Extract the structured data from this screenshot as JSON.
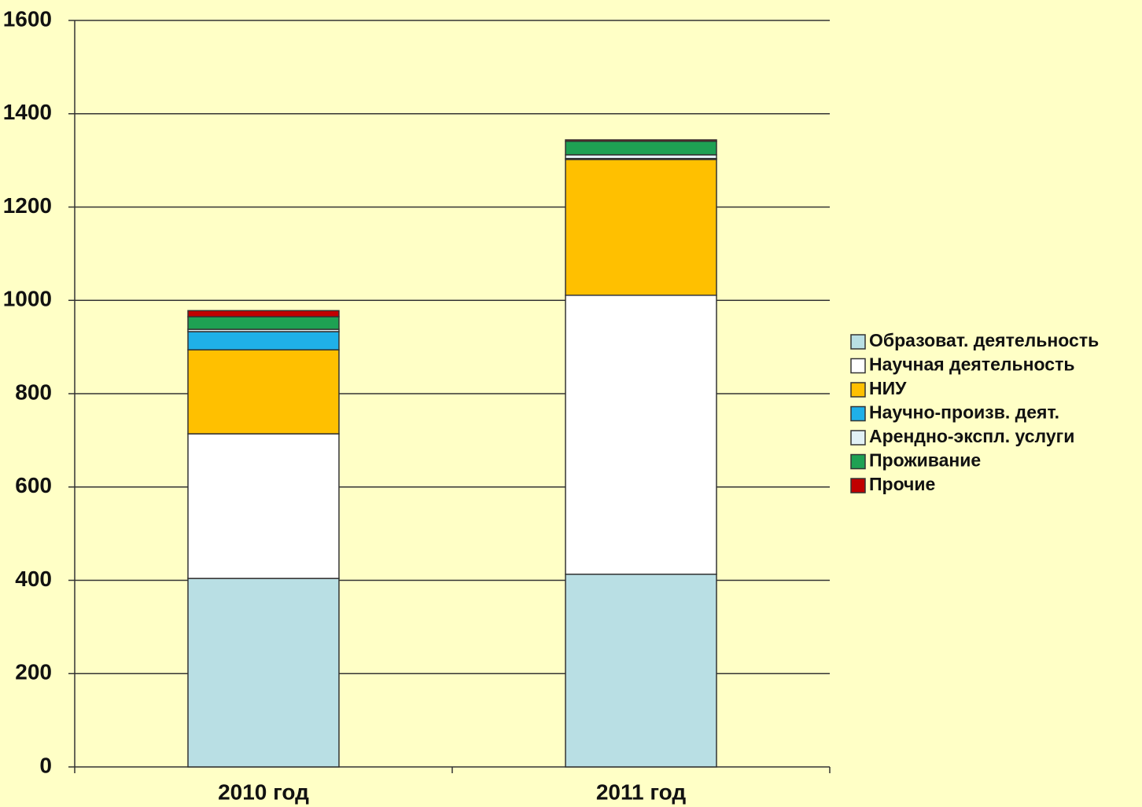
{
  "chart_data": {
    "type": "stacked_bar",
    "categories": [
      "2010 год",
      "2011 год"
    ],
    "series": [
      {
        "name": "Образоват. деятельность",
        "color": "#b9dfe4",
        "values": [
          404,
          413
        ]
      },
      {
        "name": "Научная деятельность",
        "color": "#ffffff",
        "values": [
          310,
          598
        ]
      },
      {
        "name": "НИУ",
        "color": "#ffc000",
        "values": [
          180,
          291
        ]
      },
      {
        "name": "Научно-произв. деят.",
        "color": "#1fb0e8",
        "values": [
          39,
          2
        ]
      },
      {
        "name": "Арендно-экспл. услуги",
        "color": "#e2f1f5",
        "values": [
          5,
          8
        ]
      },
      {
        "name": "Проживание",
        "color": "#1ea153",
        "values": [
          27,
          29
        ]
      },
      {
        "name": "Прочие",
        "color": "#c00000",
        "values": [
          13,
          3
        ]
      }
    ],
    "ylim": [
      0,
      1600
    ],
    "yticks": [
      0,
      200,
      400,
      600,
      800,
      1000,
      1200,
      1400,
      1600
    ],
    "grid": true,
    "legend": "right"
  }
}
